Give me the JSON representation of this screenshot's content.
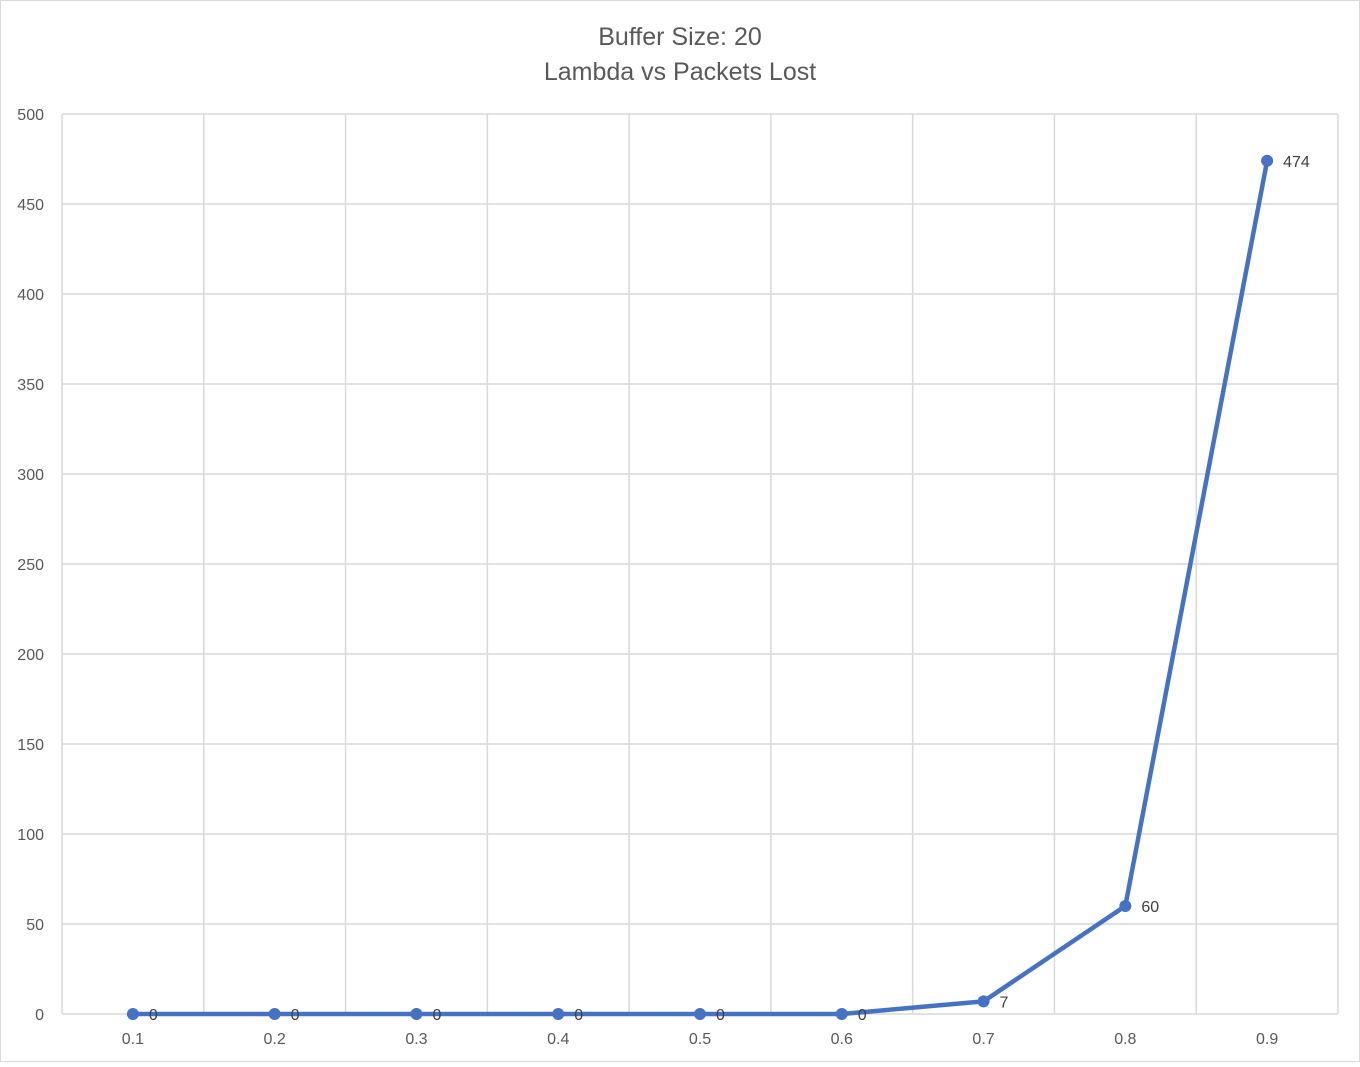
{
  "chart_data": {
    "type": "line",
    "title_line1": "Buffer Size: 20",
    "title_line2": "Lambda vs Packets Lost",
    "xlabel": "",
    "ylabel": "",
    "categories": [
      "0.1",
      "0.2",
      "0.3",
      "0.4",
      "0.5",
      "0.6",
      "0.7",
      "0.8",
      "0.9"
    ],
    "series": [
      {
        "values": [
          0,
          0,
          0,
          0,
          0,
          0,
          7,
          60,
          474
        ],
        "data_labels": [
          "0",
          "0",
          "0",
          "0",
          "0",
          "0",
          "7",
          "60",
          "474"
        ],
        "color": "#4472C4"
      }
    ],
    "ylim": [
      0,
      500
    ],
    "yticks": [
      "0",
      "50",
      "100",
      "150",
      "200",
      "250",
      "300",
      "350",
      "400",
      "450",
      "500"
    ],
    "grid": true,
    "legend": "none"
  },
  "colors": {
    "series": "#4472C4",
    "grid": "#D9D9D9",
    "text": "#595959",
    "frame": "#D9D9D9"
  }
}
